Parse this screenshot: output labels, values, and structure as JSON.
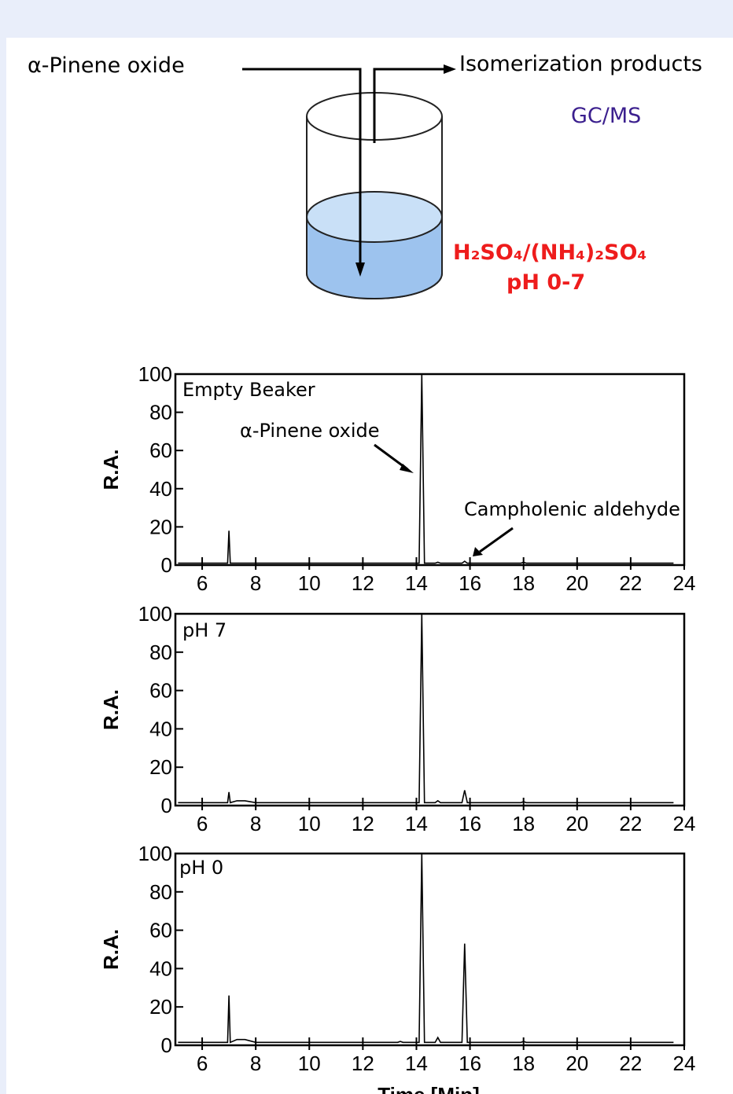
{
  "diagram": {
    "inlet": "α-Pinene oxide",
    "outlet": "Isomerization products",
    "method": "GC/MS",
    "solution": "H₂SO₄/(NH₄)₂SO₄",
    "ph_range": "pH 0-7"
  },
  "chart_data": [
    {
      "type": "line",
      "title": "Empty Beaker",
      "ylabel": "R.A.",
      "annotations": [
        "α-Pinene oxide",
        "Campholenic aldehyde"
      ],
      "x": [
        5.1,
        6.95,
        7.0,
        7.05,
        14.1,
        14.2,
        14.3,
        14.7,
        14.8,
        14.9,
        15.7,
        15.8,
        15.9,
        17.9,
        18.0,
        18.1,
        23.6
      ],
      "values": [
        1,
        1,
        18,
        1,
        1,
        100,
        1,
        1,
        1.5,
        1,
        1,
        2,
        1,
        1,
        1.5,
        1,
        1
      ],
      "color": "#000000",
      "xlim": [
        5,
        24
      ],
      "ylim": [
        0,
        100
      ],
      "xticks": [
        6,
        8,
        10,
        12,
        14,
        16,
        18,
        20,
        22,
        24
      ],
      "yticks": [
        0,
        20,
        40,
        60,
        80,
        100
      ]
    },
    {
      "type": "line",
      "title": "pH 7",
      "ylabel": "R.A.",
      "x": [
        5.1,
        6.95,
        7.0,
        7.05,
        7.3,
        7.6,
        8.0,
        14.1,
        14.2,
        14.3,
        14.7,
        14.8,
        14.9,
        15.7,
        15.8,
        15.9,
        17.9,
        18.0,
        18.1,
        23.6
      ],
      "values": [
        1.5,
        1.5,
        7,
        1.5,
        2.5,
        2.5,
        1.5,
        1.5,
        100,
        1.5,
        1.5,
        2.5,
        1.5,
        1.5,
        8,
        1.5,
        1.5,
        2,
        1.5,
        1.5
      ],
      "color": "#000000",
      "xlim": [
        5,
        24
      ],
      "ylim": [
        0,
        100
      ],
      "xticks": [
        6,
        8,
        10,
        12,
        14,
        16,
        18,
        20,
        22,
        24
      ],
      "yticks": [
        0,
        20,
        40,
        60,
        80,
        100
      ]
    },
    {
      "type": "line",
      "title": "pH 0",
      "ylabel": "R.A.",
      "xlabel": "Time [Min]",
      "x": [
        5.1,
        6.95,
        7.0,
        7.05,
        7.3,
        7.6,
        8.0,
        13.3,
        13.4,
        13.5,
        14.1,
        14.2,
        14.3,
        14.7,
        14.8,
        14.9,
        15.7,
        15.8,
        15.9,
        17.9,
        18.0,
        18.1,
        23.6
      ],
      "values": [
        1.5,
        1.5,
        26,
        1.5,
        3,
        3,
        1.5,
        1.5,
        2,
        1.5,
        1.5,
        100,
        1.5,
        1.5,
        4,
        1.5,
        1.5,
        53,
        1.5,
        1.5,
        2,
        1.5,
        1.5
      ],
      "color": "#000000",
      "xlim": [
        5,
        24
      ],
      "ylim": [
        0,
        100
      ],
      "xticks": [
        6,
        8,
        10,
        12,
        14,
        16,
        18,
        20,
        22,
        24
      ],
      "yticks": [
        0,
        20,
        40,
        60,
        80,
        100
      ]
    }
  ]
}
